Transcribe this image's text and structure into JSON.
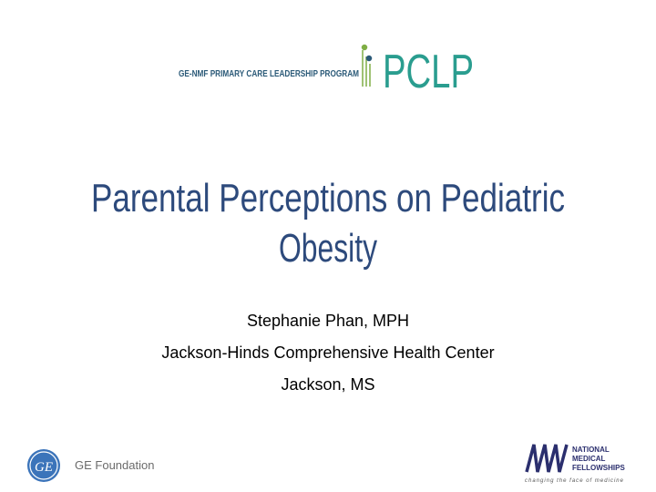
{
  "logo": {
    "program": "GE-NMF PRIMARY CARE LEADERSHIP PROGRAM",
    "acronym": "PCLP"
  },
  "title": {
    "lines": [
      "Parental Perceptions on Pediatric",
      "Obesity"
    ]
  },
  "presenter": {
    "lines": [
      "Stephanie Phan, MPH",
      "Jackson-Hinds Comprehensive Health Center",
      "Jackson, MS"
    ]
  },
  "footer": {
    "ge_monogram": "GE",
    "ge_foundation": "GE Foundation",
    "nmf_lines": [
      "NATIONAL",
      "MEDICAL",
      "FELLOWSHIPS"
    ],
    "nmf_tagline": "changing the face of medicine"
  }
}
